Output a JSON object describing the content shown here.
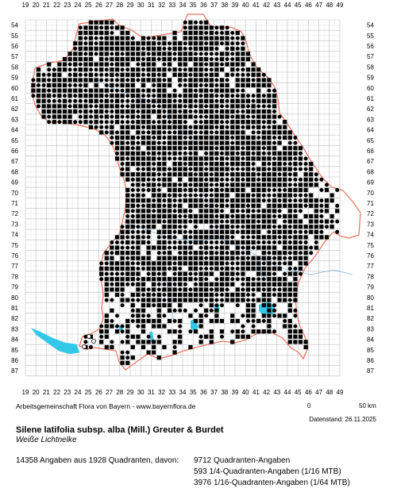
{
  "grid": {
    "col_labels": [
      "19",
      "20",
      "21",
      "22",
      "23",
      "24",
      "25",
      "26",
      "27",
      "28",
      "29",
      "30",
      "31",
      "32",
      "33",
      "34",
      "35",
      "36",
      "37",
      "38",
      "39",
      "40",
      "41",
      "42",
      "43",
      "44",
      "45",
      "46",
      "47",
      "48",
      "49"
    ],
    "row_labels": [
      "54",
      "55",
      "56",
      "57",
      "58",
      "59",
      "60",
      "61",
      "62",
      "63",
      "64",
      "65",
      "66",
      "67",
      "68",
      "69",
      "70",
      "71",
      "72",
      "73",
      "74",
      "75",
      "76",
      "77",
      "78",
      "79",
      "80",
      "81",
      "82",
      "83",
      "84",
      "85",
      "86",
      "87"
    ]
  },
  "colors": {
    "grid_line": "#bdbdbd",
    "border": "#e8705a",
    "water": "#33c8e8",
    "river": "#5aa0d8",
    "dot": "#000000"
  },
  "marker_types": [
    "square-marker",
    "circle-marker",
    "open-circle-marker"
  ],
  "credit": "Arbeitsgemeinschaft Flora von Bayern - www.bayernflora.de",
  "scale": {
    "zero": "0",
    "end": "50 km"
  },
  "date": "Datenstand: 26.11.2025",
  "title": "Silene latifolia subsp. alba (Mill.) Greuter & Burdet",
  "common_name": "Weiße Lichtnelke",
  "stats": {
    "total": "14358 Angaben aus 1928 Quadranten, davon:",
    "quadrant": "9712 Quadranten-Angaben",
    "q16": "593 1/4-Quadranten-Angaben (1/16 MTB)",
    "q64": "3976 1/16-Quadranten-Angaben (1/64 MTB)"
  }
}
